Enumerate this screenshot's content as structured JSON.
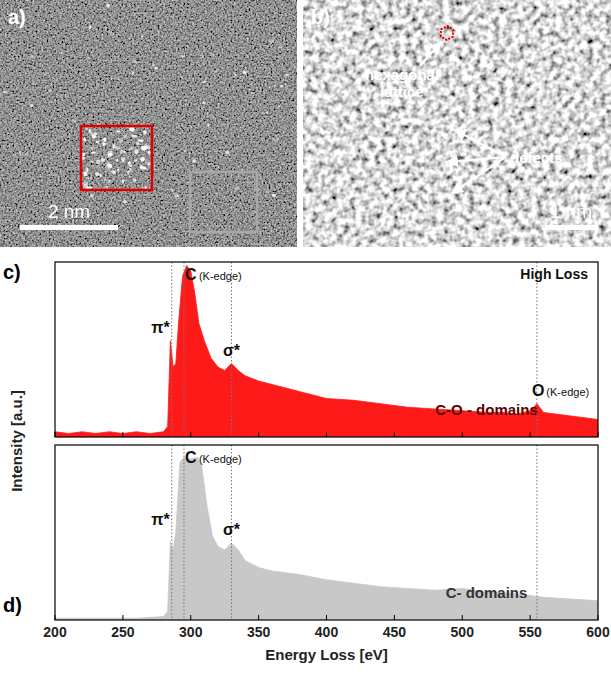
{
  "images": [
    {
      "label": "a)",
      "scale_bar": "2 nm"
    },
    {
      "label": "b)",
      "scale_bar": "1 nm",
      "annotations": [
        "hexagonal lattice",
        "defects"
      ]
    }
  ],
  "chart_data": [
    {
      "type": "area",
      "panel": "c)",
      "title": "High Loss",
      "x": [
        200,
        210,
        220,
        230,
        240,
        250,
        260,
        270,
        280,
        283,
        285,
        287,
        289,
        291,
        294,
        297,
        300,
        303,
        306,
        310,
        315,
        320,
        325,
        330,
        335,
        340,
        350,
        360,
        370,
        380,
        390,
        400,
        420,
        440,
        460,
        480,
        500,
        520,
        530,
        540,
        550,
        555,
        560,
        580,
        600
      ],
      "series": [
        {
          "name": "C-O - domains",
          "color": "#ff1a1a",
          "values": [
            3,
            2,
            3,
            2,
            3,
            2,
            3,
            2,
            3,
            6,
            55,
            40,
            42,
            65,
            92,
            98,
            95,
            82,
            65,
            55,
            45,
            40,
            38,
            42,
            38,
            35,
            32,
            30,
            28,
            26,
            24,
            22,
            21,
            19,
            17,
            16,
            15,
            14,
            14,
            13,
            15,
            19,
            14,
            12,
            10
          ]
        }
      ],
      "annotations": [
        {
          "text": "π*",
          "x": 286
        },
        {
          "text": "C",
          "sub": "(K-edge)",
          "x": 295
        },
        {
          "text": "σ*",
          "x": 330
        },
        {
          "text": "O",
          "sub": "(K-edge)",
          "x": 555
        }
      ],
      "xlim": [
        200,
        600
      ],
      "xticks": [
        200,
        250,
        300,
        350,
        400,
        450,
        500,
        550,
        600
      ],
      "ylim": [
        0,
        100
      ],
      "tick_labels": false
    },
    {
      "type": "area",
      "panel": "d)",
      "x_label": "Energy Loss [eV]",
      "y_label": "Intensity [a.u.]",
      "x": [
        200,
        220,
        240,
        260,
        280,
        283,
        285,
        287,
        289,
        292,
        295,
        300,
        305,
        308,
        312,
        316,
        320,
        325,
        330,
        335,
        340,
        350,
        360,
        380,
        400,
        420,
        440,
        460,
        480,
        500,
        520,
        540,
        560,
        580,
        600
      ],
      "series": [
        {
          "name": "C- domains",
          "color": "#c8c8c8",
          "values": [
            1,
            1,
            1,
            1,
            2,
            5,
            45,
            40,
            50,
            90,
            93,
            92,
            93,
            88,
            65,
            48,
            42,
            40,
            44,
            40,
            34,
            30,
            28,
            26,
            23,
            21,
            19,
            18,
            17,
            18,
            16,
            15,
            13,
            12,
            11
          ]
        }
      ],
      "annotations": [
        {
          "text": "π*",
          "x": 286
        },
        {
          "text": "C",
          "sub": "(K-edge)",
          "x": 295
        },
        {
          "text": "σ*",
          "x": 330
        }
      ],
      "reference_lines": [
        555
      ],
      "xlim": [
        200,
        600
      ],
      "xticks": [
        200,
        250,
        300,
        350,
        400,
        450,
        500,
        550,
        600
      ],
      "ylim": [
        0,
        100
      ],
      "tick_labels": "x"
    }
  ]
}
